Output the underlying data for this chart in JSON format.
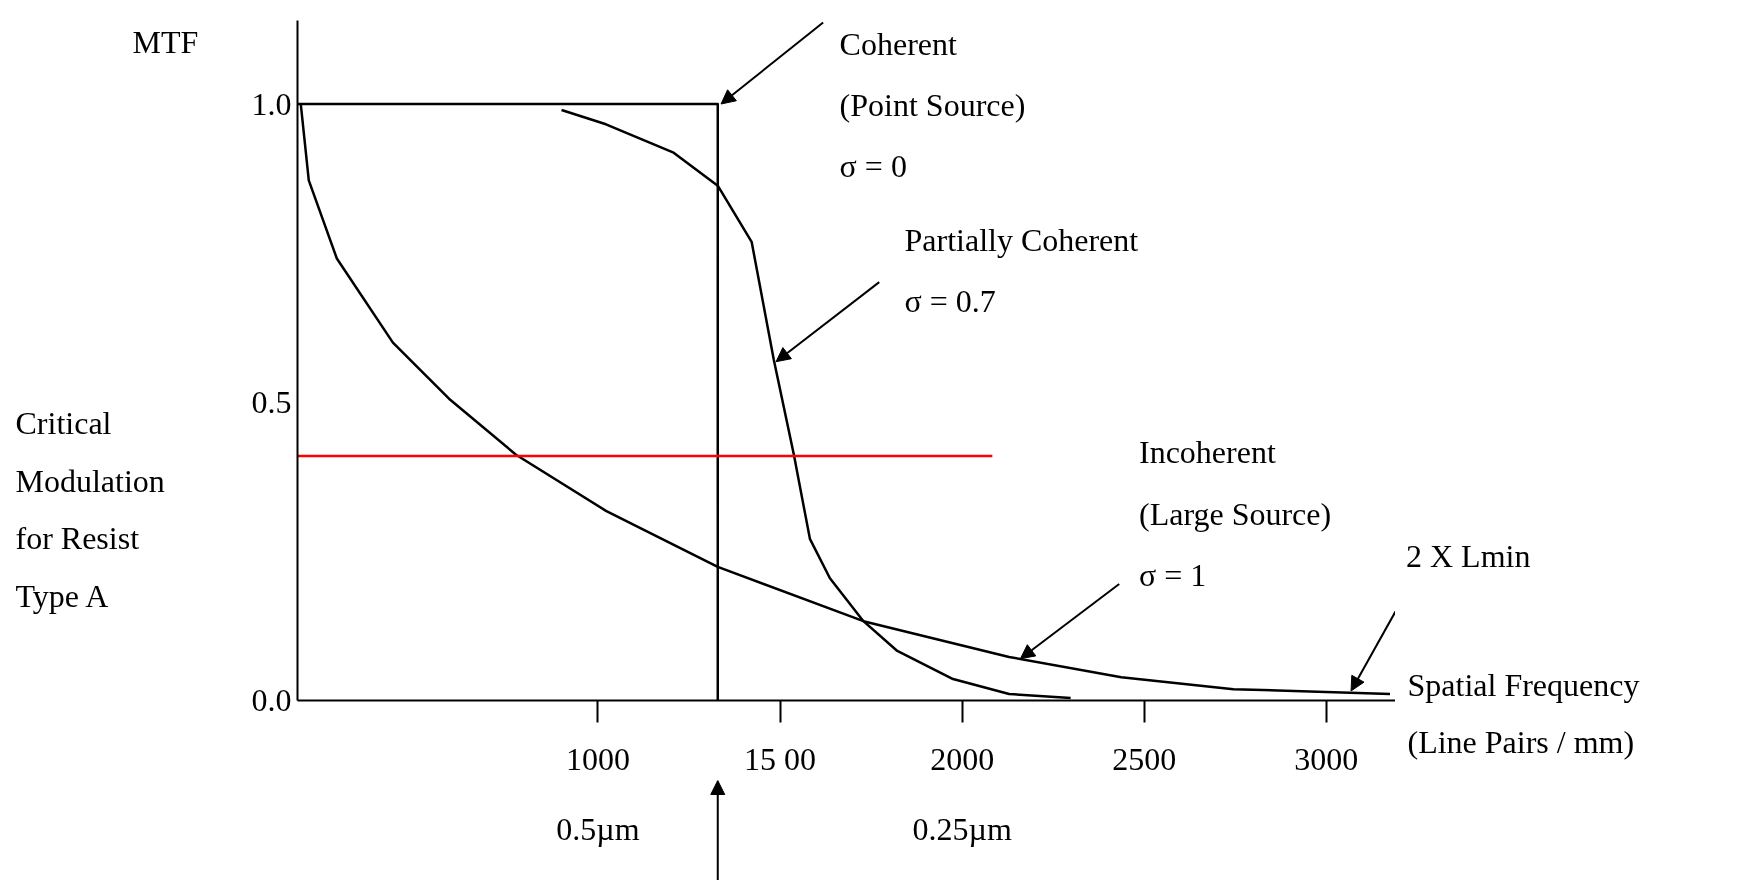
{
  "chart_data": {
    "type": "line",
    "ylabel": "MTF",
    "xlabel": "Spatial Frequency\n(Line Pairs / mm)",
    "xlim": [
      175,
      3190
    ],
    "ylim": [
      0,
      1.14
    ],
    "xticks": [
      1000,
      {
        "value": 1500,
        "label": "15 00"
      },
      2000,
      2500,
      3000
    ],
    "yticks": [
      {
        "value": 0,
        "label": "0.0"
      },
      {
        "value": 0.5,
        "label": "0.5"
      },
      {
        "value": 1.0,
        "label": "1.0"
      }
    ],
    "grid": false,
    "series": [
      {
        "color": "#000000",
        "x": [
          175,
          1329,
          1329
        ],
        "values": [
          1.0,
          1.0,
          0
        ]
      },
      {
        "color": "#000000",
        "x": [
          900,
          1022,
          1206,
          1329,
          1422,
          1483,
          1538,
          1582,
          1637,
          1729,
          1822,
          1975,
          2129,
          2298
        ],
        "values": [
          0.99,
          0.966,
          0.919,
          0.863,
          0.769,
          0.571,
          0.412,
          0.271,
          0.205,
          0.133,
          0.083,
          0.036,
          0.011,
          0.004
        ]
      },
      {
        "color": "#000000",
        "x": [
          184,
          206,
          283,
          437,
          591,
          775,
          1022,
          1329,
          1729,
          2129,
          2437,
          2745,
          3175
        ],
        "values": [
          1.0,
          0.872,
          0.741,
          0.6,
          0.506,
          0.412,
          0.318,
          0.224,
          0.133,
          0.073,
          0.039,
          0.019,
          0.011
        ]
      },
      {
        "name": "Critical\nModulation\nfor Resist\nType A",
        "color": "#ff0000",
        "x": [
          175,
          2083
        ],
        "values": [
          0.41,
          0.41
        ]
      }
    ],
    "annotations": [
      {
        "text": "Coherent\n(Point Source)\nσ = 0",
        "x": 1338,
        "y": 1.0
      },
      {
        "text": "Partially Coherent\nσ = 0.7",
        "x": 1489,
        "y": 0.568
      },
      {
        "text": "Incoherent\n(Large Source)\nσ = 1",
        "x": 2160,
        "y": 0.07
      },
      {
        "text": "2 X Lmin",
        "x": 3068,
        "y": 0.016
      },
      "0.5µm",
      "0.25µm"
    ]
  }
}
